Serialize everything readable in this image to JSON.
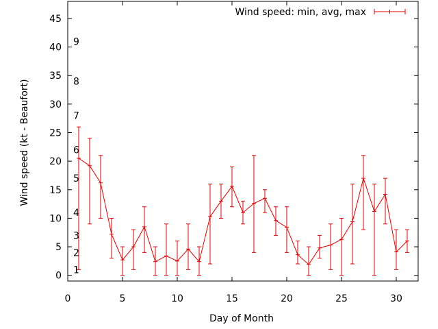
{
  "chart_data": {
    "type": "line",
    "title": "",
    "xlabel": "Day of Month",
    "ylabel": "Wind speed (kt - Beaufort)",
    "xlim": [
      0,
      32
    ],
    "ylim": [
      -1,
      48
    ],
    "x_ticks": [
      0,
      5,
      10,
      15,
      20,
      25,
      30
    ],
    "y_ticks": [
      0,
      5,
      10,
      15,
      20,
      25,
      30,
      35,
      40,
      45
    ],
    "grid": false,
    "legend_position": "top-right",
    "color": "#e00000",
    "beaufort_labels": [
      {
        "label": "1",
        "y": 1
      },
      {
        "label": "2",
        "y": 4
      },
      {
        "label": "3",
        "y": 7
      },
      {
        "label": "4",
        "y": 11
      },
      {
        "label": "5",
        "y": 17
      },
      {
        "label": "6",
        "y": 22
      },
      {
        "label": "7",
        "y": 28
      },
      {
        "label": "8",
        "y": 34
      },
      {
        "label": "9",
        "y": 41
      }
    ],
    "series": [
      {
        "name": "Wind speed: min, avg, max",
        "x": [
          1,
          2,
          3,
          4,
          5,
          6,
          7,
          8,
          9,
          10,
          11,
          12,
          13,
          14,
          15,
          16,
          17,
          18,
          19,
          20,
          21,
          22,
          23,
          24,
          25,
          26,
          27,
          28,
          29,
          30,
          31
        ],
        "avg": [
          20.5,
          19.2,
          16.2,
          7.2,
          2.7,
          5.0,
          8.5,
          2.4,
          3.4,
          2.5,
          4.6,
          2.4,
          10.3,
          13.0,
          15.6,
          11.0,
          12.6,
          13.5,
          9.6,
          8.4,
          3.6,
          1.9,
          4.8,
          5.3,
          6.3,
          9.4,
          17.0,
          11.2,
          14.2,
          4.1,
          6.0
        ],
        "min": [
          1,
          9,
          10,
          3,
          0,
          1,
          4,
          0,
          0,
          0,
          1,
          0,
          2,
          10,
          12,
          9,
          4,
          11,
          7,
          4,
          2,
          0,
          3,
          1,
          0,
          2,
          8,
          0,
          9,
          1,
          4
        ],
        "max": [
          26,
          24,
          21,
          10,
          5,
          8,
          12,
          5,
          9,
          6,
          9,
          5,
          16,
          16,
          19,
          13,
          21,
          15,
          12,
          12,
          6,
          5,
          7,
          9,
          10,
          16,
          21,
          16,
          17,
          8,
          8
        ]
      }
    ]
  }
}
